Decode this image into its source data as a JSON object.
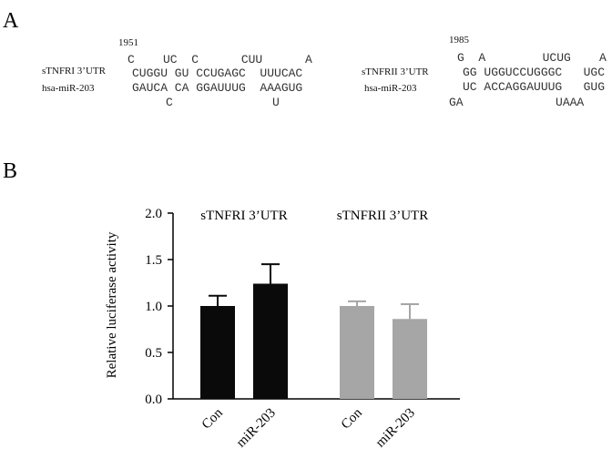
{
  "panel_a": {
    "label": "A",
    "left": {
      "position": "1951",
      "labels": [
        "sTNFRI 3’UTR",
        "hsa-miR-203"
      ],
      "rows": [
        "C    UC  C      CUU      A",
        "CUGGU GU CCUGAGC  UUUCAC",
        "GAUCA CA GGAUUUG  AAAGUG",
        "C              U"
      ]
    },
    "right": {
      "position": "1985",
      "labels": [
        "sTNFRII 3’UTR",
        "hsa-miR-203"
      ],
      "rows": [
        "G  A        UCUG    A",
        "GG UGGUCCUGGGC   UGC",
        "UC ACCAGGAUUUG   GUG",
        "GA             UAAA"
      ]
    }
  },
  "panel_b": {
    "label": "B"
  },
  "chart_data": {
    "type": "bar",
    "y_label": "Relative luciferase activity",
    "group_labels": [
      "sTNFRI 3’UTR",
      "sTNFRII 3’UTR"
    ],
    "categories": [
      "Con",
      "miR-203",
      "Con",
      "miR-203"
    ],
    "values": [
      1.0,
      1.24,
      1.0,
      0.86
    ],
    "errors": [
      0.11,
      0.21,
      0.05,
      0.16
    ],
    "colors": [
      "#0a0a0a",
      "#0a0a0a",
      "#a6a6a6",
      "#a6a6a6"
    ],
    "ylim": [
      0,
      2
    ],
    "yticks": [
      {
        "value": 0,
        "label": "0.0"
      },
      {
        "value": 0.5,
        "label": "0.5"
      },
      {
        "value": 1,
        "label": "1.0"
      },
      {
        "value": 1.5,
        "label": "1.5"
      },
      {
        "value": 2,
        "label": "2.0"
      }
    ]
  }
}
